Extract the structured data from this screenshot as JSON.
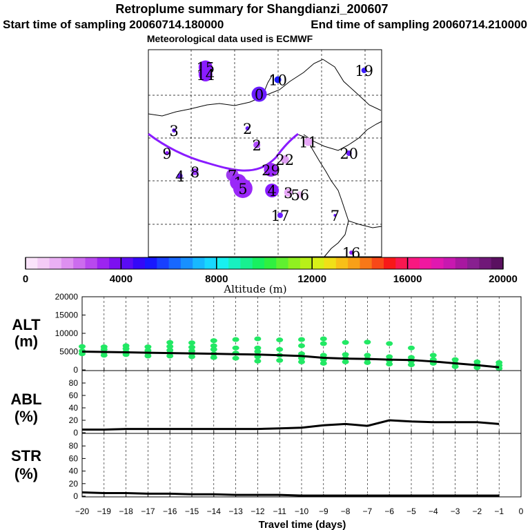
{
  "title": {
    "line1": "Retroplume summary for Shangdianzi_200607",
    "line2_left": "Start time of sampling 20060714.180000",
    "line2_right": "End time of sampling 20060714.210000",
    "line3": "Meteorological data used is ECMWF"
  },
  "colors": {
    "cluster_purple": "#8a1cff",
    "green_points": "#22e864",
    "line": "#000000"
  },
  "chart_data": [
    {
      "type": "scatter",
      "name": "retroplume-map",
      "description_labels": [
        "19",
        "15",
        "14",
        "10",
        "0",
        "3",
        "2",
        "11",
        "1",
        "20",
        "9",
        "2",
        "2",
        "22",
        "4",
        "8",
        "6",
        "9",
        "7",
        "1",
        "2",
        "3",
        "0",
        "5",
        "3",
        "4",
        "3",
        "4",
        "5",
        "6",
        "17",
        "7",
        "16"
      ],
      "clusters": [
        {
          "label": "15",
          "lon": 0.245,
          "lat": 0.915,
          "size": 10,
          "color": "#8a1cff"
        },
        {
          "label": "14",
          "lon": 0.245,
          "lat": 0.88,
          "size": 10,
          "color": "#8a1cff"
        },
        {
          "label": "19",
          "lon": 0.925,
          "lat": 0.9,
          "size": 4,
          "color": "#3c1cff"
        },
        {
          "label": "10",
          "lon": 0.555,
          "lat": 0.855,
          "size": 5,
          "color": "#1c1cff"
        },
        {
          "label": "0",
          "lon": 0.475,
          "lat": 0.785,
          "size": 11,
          "color": "#6a1cff"
        },
        {
          "label": "3",
          "lon": 0.11,
          "lat": 0.61,
          "size": 3,
          "color": "#6a1cff"
        },
        {
          "label": "2",
          "lon": 0.425,
          "lat": 0.62,
          "size": 3,
          "color": "#6a1cff"
        },
        {
          "label": "2",
          "lon": 0.465,
          "lat": 0.54,
          "size": 5,
          "color": "#b04cff"
        },
        {
          "label": "11",
          "lon": 0.685,
          "lat": 0.555,
          "size": 6,
          "color": "#e8a8f8"
        },
        {
          "label": "20",
          "lon": 0.86,
          "lat": 0.5,
          "size": 4,
          "color": "#6a1cff"
        },
        {
          "label": "9",
          "lon": 0.08,
          "lat": 0.5,
          "size": 3,
          "color": "#8a1cff"
        },
        {
          "label": "22",
          "lon": 0.585,
          "lat": 0.47,
          "size": 6,
          "color": "#e0a0f4"
        },
        {
          "label": "4",
          "lon": 0.135,
          "lat": 0.39,
          "size": 4,
          "color": "#6a1cff"
        },
        {
          "label": "8",
          "lon": 0.2,
          "lat": 0.41,
          "size": 5,
          "color": "#9c3cff"
        },
        {
          "label": "7",
          "lon": 0.36,
          "lat": 0.395,
          "size": 9,
          "color": "#a03cf0"
        },
        {
          "label": "1",
          "lon": 0.385,
          "lat": 0.36,
          "size": 12,
          "color": "#9a28f8"
        },
        {
          "label": "5",
          "lon": 0.405,
          "lat": 0.33,
          "size": 14,
          "color": "#9a28f8"
        },
        {
          "label": "29",
          "lon": 0.525,
          "lat": 0.42,
          "size": 10,
          "color": "#9a28f8"
        },
        {
          "label": "4",
          "lon": 0.53,
          "lat": 0.32,
          "size": 10,
          "color": "#8a1cff"
        },
        {
          "label": "3",
          "lon": 0.6,
          "lat": 0.31,
          "size": 6,
          "color": "#e8a8f8"
        },
        {
          "label": "56",
          "lon": 0.65,
          "lat": 0.3,
          "size": 5,
          "color": "#f0c0f8"
        },
        {
          "label": "17",
          "lon": 0.565,
          "lat": 0.2,
          "size": 4,
          "color": "#6a1cff"
        },
        {
          "label": "7",
          "lon": 0.8,
          "lat": 0.2,
          "size": 2,
          "color": "#6a1cff"
        },
        {
          "label": "16",
          "lon": 0.87,
          "lat": 0.02,
          "size": 3,
          "color": "#8a1cff"
        }
      ]
    },
    {
      "type": "colorbar",
      "name": "altitude-colorbar",
      "xlabel": "Altitude (m)",
      "tick_labels": [
        "0",
        "4000",
        "8000",
        "12000",
        "16000",
        "20000"
      ],
      "ticks": [
        0,
        4000,
        8000,
        12000,
        16000,
        20000
      ],
      "range": [
        0,
        20000
      ]
    },
    {
      "type": "line",
      "name": "ALT",
      "ylabel_1": "ALT",
      "ylabel_2": "(m)",
      "ylim": [
        0,
        20000
      ],
      "yticks": [
        0,
        5000,
        10000,
        15000,
        20000
      ],
      "ytick_labels": [
        "0",
        "5000",
        "10000",
        "15000",
        "20000"
      ],
      "x": [
        -20,
        -19,
        -18,
        -17,
        -16,
        -15,
        -14,
        -13,
        -12,
        -11,
        -10,
        -9,
        -8,
        -7,
        -6,
        -5,
        -4,
        -3,
        -2,
        -1
      ],
      "values": [
        5000,
        4900,
        4800,
        4700,
        4600,
        4500,
        4400,
        4300,
        4200,
        4000,
        3800,
        3300,
        3100,
        3000,
        2800,
        2700,
        2300,
        1800,
        1300,
        700
      ],
      "scatter_points": [
        {
          "x": -20,
          "y": 6400
        },
        {
          "x": -20,
          "y": 5200
        },
        {
          "x": -20,
          "y": 4400
        },
        {
          "x": -19,
          "y": 6300
        },
        {
          "x": -19,
          "y": 5600
        },
        {
          "x": -19,
          "y": 4800
        },
        {
          "x": -19,
          "y": 4000
        },
        {
          "x": -18,
          "y": 6600
        },
        {
          "x": -18,
          "y": 5800
        },
        {
          "x": -18,
          "y": 4900
        },
        {
          "x": -18,
          "y": 4200
        },
        {
          "x": -17,
          "y": 6300
        },
        {
          "x": -17,
          "y": 5300
        },
        {
          "x": -17,
          "y": 4600
        },
        {
          "x": -17,
          "y": 3800
        },
        {
          "x": -16,
          "y": 7500
        },
        {
          "x": -16,
          "y": 6400
        },
        {
          "x": -16,
          "y": 5400
        },
        {
          "x": -16,
          "y": 4600
        },
        {
          "x": -16,
          "y": 3800
        },
        {
          "x": -15,
          "y": 7400
        },
        {
          "x": -15,
          "y": 6200
        },
        {
          "x": -15,
          "y": 5200
        },
        {
          "x": -15,
          "y": 4400
        },
        {
          "x": -15,
          "y": 3600
        },
        {
          "x": -14,
          "y": 8000
        },
        {
          "x": -14,
          "y": 6600
        },
        {
          "x": -14,
          "y": 5600
        },
        {
          "x": -14,
          "y": 4400
        },
        {
          "x": -14,
          "y": 3400
        },
        {
          "x": -13,
          "y": 8300
        },
        {
          "x": -13,
          "y": 6000
        },
        {
          "x": -13,
          "y": 4600
        },
        {
          "x": -13,
          "y": 3200
        },
        {
          "x": -12,
          "y": 8500
        },
        {
          "x": -12,
          "y": 6000
        },
        {
          "x": -12,
          "y": 5000
        },
        {
          "x": -12,
          "y": 3600
        },
        {
          "x": -12,
          "y": 2400
        },
        {
          "x": -11,
          "y": 8200
        },
        {
          "x": -11,
          "y": 5600
        },
        {
          "x": -11,
          "y": 4000
        },
        {
          "x": -11,
          "y": 2600
        },
        {
          "x": -10,
          "y": 8300
        },
        {
          "x": -10,
          "y": 6600
        },
        {
          "x": -10,
          "y": 4400
        },
        {
          "x": -10,
          "y": 3200
        },
        {
          "x": -10,
          "y": 2200
        },
        {
          "x": -9,
          "y": 8500
        },
        {
          "x": -9,
          "y": 7200
        },
        {
          "x": -9,
          "y": 4000
        },
        {
          "x": -9,
          "y": 2800
        },
        {
          "x": -9,
          "y": 1800
        },
        {
          "x": -8,
          "y": 7500
        },
        {
          "x": -8,
          "y": 4200
        },
        {
          "x": -8,
          "y": 3200
        },
        {
          "x": -8,
          "y": 2200
        },
        {
          "x": -7,
          "y": 7600
        },
        {
          "x": -7,
          "y": 4000
        },
        {
          "x": -7,
          "y": 3000
        },
        {
          "x": -7,
          "y": 2000
        },
        {
          "x": -6,
          "y": 7200
        },
        {
          "x": -6,
          "y": 3600
        },
        {
          "x": -6,
          "y": 2600
        },
        {
          "x": -6,
          "y": 1600
        },
        {
          "x": -5,
          "y": 6000
        },
        {
          "x": -5,
          "y": 3400
        },
        {
          "x": -5,
          "y": 2400
        },
        {
          "x": -5,
          "y": 1400
        },
        {
          "x": -4,
          "y": 4000
        },
        {
          "x": -4,
          "y": 2800
        },
        {
          "x": -4,
          "y": 1800
        },
        {
          "x": -3,
          "y": 2800
        },
        {
          "x": -3,
          "y": 1800
        },
        {
          "x": -3,
          "y": 900
        },
        {
          "x": -2,
          "y": 2200
        },
        {
          "x": -2,
          "y": 1400
        },
        {
          "x": -2,
          "y": 600
        },
        {
          "x": -1,
          "y": 2000
        },
        {
          "x": -1,
          "y": 1200
        },
        {
          "x": -1,
          "y": 400
        }
      ]
    },
    {
      "type": "line",
      "name": "ABL",
      "ylabel_1": "ABL",
      "ylabel_2": "(%)",
      "ylim": [
        0,
        100
      ],
      "yticks": [
        0,
        20,
        40,
        60,
        80
      ],
      "ytick_labels": [
        "0",
        "20",
        "40",
        "60",
        "80"
      ],
      "x": [
        -20,
        -19,
        -18,
        -17,
        -16,
        -15,
        -14,
        -13,
        -12,
        -11,
        -10,
        -9,
        -8,
        -7,
        -6,
        -5,
        -4,
        -3,
        -2,
        -1
      ],
      "values": [
        5,
        5,
        6,
        6,
        6,
        6,
        6,
        6,
        6,
        7,
        8,
        12,
        14,
        11,
        20,
        18,
        17,
        17,
        17,
        14
      ]
    },
    {
      "type": "line",
      "name": "STR",
      "ylabel_1": "STR",
      "ylabel_2": "(%)",
      "ylim": [
        0,
        100
      ],
      "yticks": [
        0,
        20,
        40,
        60,
        80
      ],
      "ytick_labels": [
        "0",
        "20",
        "40",
        "60",
        "80"
      ],
      "x": [
        -20,
        -19,
        -18,
        -17,
        -16,
        -15,
        -14,
        -13,
        -12,
        -11,
        -10,
        -9,
        -8,
        -7,
        -6,
        -5,
        -4,
        -3,
        -2,
        -1
      ],
      "values": [
        6,
        5,
        5,
        4,
        4,
        3,
        3,
        2,
        2,
        2,
        1,
        1,
        1,
        1,
        1,
        1,
        1,
        1,
        1,
        1
      ],
      "xlabel": "Travel time (days)",
      "xticks": [
        -20,
        -19,
        -18,
        -17,
        -16,
        -15,
        -14,
        -13,
        -12,
        -11,
        -10,
        -9,
        -8,
        -7,
        -6,
        -5,
        -4,
        -3,
        -2,
        -1,
        0
      ],
      "xtick_labels": [
        "−20",
        "−19",
        "−18",
        "−17",
        "−16",
        "−15",
        "−14",
        "−13",
        "−12",
        "−11",
        "−10",
        "−9",
        "−8",
        "−7",
        "−6",
        "−5",
        "−4",
        "−3",
        "−2",
        "−1",
        "0"
      ]
    }
  ]
}
